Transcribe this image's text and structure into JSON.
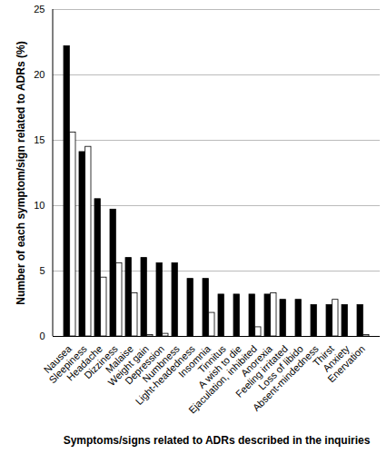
{
  "chart_data": {
    "type": "bar",
    "x_label": "Symptoms/signs related to ADRs described in the inquiries",
    "y_label": "Number of each symptom/sign related to ADRs (%)",
    "categories": [
      "Nausea",
      "Sleepiness",
      "Headache",
      "Dizziness",
      "Malaise",
      "Weight gain",
      "Depression",
      "Numbness",
      "Light-headedness",
      "Insomnia",
      "Tinnitus",
      "A wish to die",
      "Ejaculation, inhibited",
      "Anorexia",
      "Feeling irritated",
      "Loss of libido",
      "Absent-mindedness",
      "Thirst",
      "Anxiety",
      "Enervation"
    ],
    "series": [
      {
        "color": "#000000",
        "values": [
          22.2,
          14.1,
          10.5,
          9.7,
          6.0,
          6.0,
          5.6,
          5.6,
          4.4,
          4.4,
          3.2,
          3.2,
          3.2,
          3.2,
          2.8,
          2.8,
          2.4,
          2.4,
          2.4,
          2.4
        ]
      },
      {
        "color": "#ffffff",
        "values": [
          15.6,
          14.5,
          4.5,
          5.6,
          3.3,
          0.1,
          0.2,
          0,
          0,
          1.8,
          0,
          0,
          0.7,
          3.3,
          0,
          0,
          0,
          2.8,
          0,
          0.1
        ]
      }
    ],
    "ylim": [
      0,
      25
    ],
    "yticks": [
      0,
      5,
      10,
      15,
      20,
      25
    ],
    "grid": true
  }
}
